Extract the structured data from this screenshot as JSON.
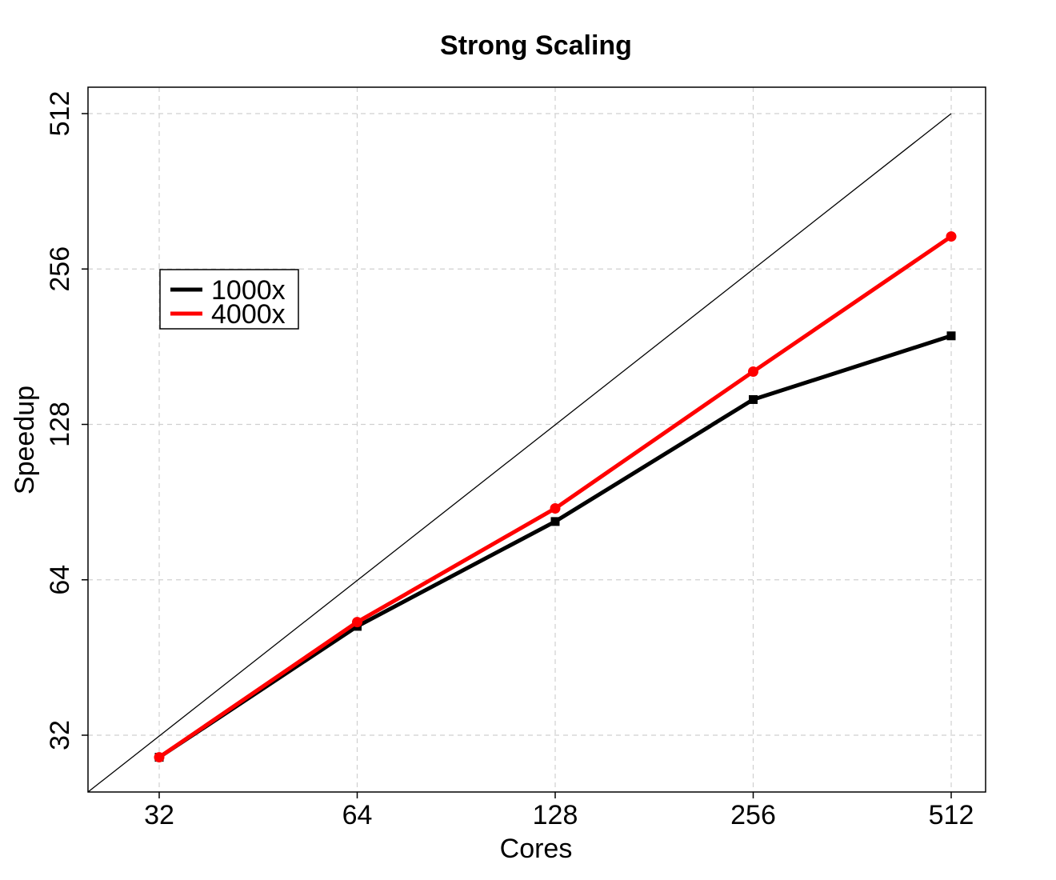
{
  "chart_data": {
    "type": "line",
    "title": "Strong Scaling",
    "xlabel": "Cores",
    "ylabel": "Speedup",
    "x_scale": "log2",
    "y_scale": "log2",
    "x": [
      32,
      64,
      128,
      256,
      512
    ],
    "x_ticks": [
      "32",
      "64",
      "128",
      "256",
      "512"
    ],
    "y_ticks": [
      "32",
      "64",
      "128",
      "256",
      "512"
    ],
    "ylim": [
      28,
      540
    ],
    "xlim": [
      28,
      540
    ],
    "grid": true,
    "legend_position": "upper-left",
    "reference_line": "ideal",
    "series": [
      {
        "name": "1000x",
        "color": "#000000",
        "marker": "square",
        "values": [
          29,
          52,
          83,
          143,
          190
        ]
      },
      {
        "name": "4000x",
        "color": "#ff0000",
        "marker": "circle",
        "values": [
          29,
          53,
          88,
          162,
          296
        ]
      }
    ]
  }
}
